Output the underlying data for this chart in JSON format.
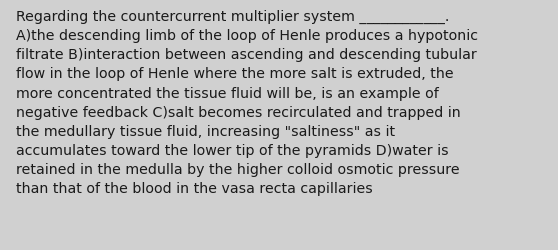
{
  "background_color": "#d0d0d0",
  "text_color": "#1a1a1a",
  "font_size": 10.2,
  "lines": [
    "Regarding the countercurrent multiplier system ____________.",
    "A)the descending limb of the loop of Henle produces a hypotonic",
    "filtrate B)interaction between ascending and descending tubular",
    "flow in the loop of Henle where the more salt is extruded, the",
    "more concentrated the tissue fluid will be, is an example of",
    "negative feedback C)salt becomes recirculated and trapped in",
    "the medullary tissue fluid, increasing \"saltiness\" as it",
    "accumulates toward the lower tip of the pyramids D)water is",
    "retained in the medulla by the higher colloid osmotic pressure",
    "than that of the blood in the vasa recta capillaries"
  ],
  "figsize": [
    5.58,
    2.51
  ],
  "dpi": 100
}
